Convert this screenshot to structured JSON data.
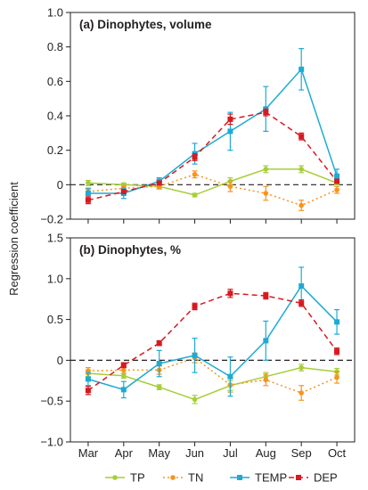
{
  "ylabel": "Regression coefficient",
  "categories": [
    "Mar",
    "Apr",
    "May",
    "Jun",
    "Jul",
    "Aug",
    "Sep",
    "Oct"
  ],
  "legend": [
    {
      "name": "TP",
      "color": "#a6ce39",
      "dash": "solid",
      "marker": "circle"
    },
    {
      "name": "TN",
      "color": "#f7941d",
      "dash": "dotted",
      "marker": "circle"
    },
    {
      "name": "TEMP",
      "color": "#1eaad4",
      "dash": "solid",
      "marker": "square"
    },
    {
      "name": "DEP",
      "color": "#d71920",
      "dash": "dashed",
      "marker": "square"
    }
  ],
  "chart_data": [
    {
      "type": "line",
      "title": "(a) Dinophytes, volume",
      "ylim": [
        -0.2,
        1.0
      ],
      "yticks": [
        -0.2,
        0,
        0.2,
        0.4,
        0.6,
        0.8,
        1.0
      ],
      "ytick_labels": [
        "−0.2",
        "0",
        "0.2",
        "0.4",
        "0.6",
        "0.8",
        "1.0"
      ],
      "categories": [
        "Mar",
        "Apr",
        "May",
        "Jun",
        "Jul",
        "Aug",
        "Sep",
        "Oct"
      ],
      "reference_line": 0,
      "series": [
        {
          "name": "TP",
          "values": [
            0.01,
            0.0,
            -0.01,
            -0.06,
            0.02,
            0.09,
            0.09,
            0.01
          ],
          "errors": [
            0.015,
            0.01,
            0.01,
            0.01,
            0.02,
            0.02,
            0.02,
            0.01
          ]
        },
        {
          "name": "TN",
          "values": [
            -0.04,
            -0.02,
            -0.01,
            0.06,
            -0.01,
            -0.05,
            -0.12,
            -0.03
          ],
          "errors": [
            0.015,
            0.015,
            0.015,
            0.02,
            0.03,
            0.04,
            0.03,
            0.02
          ]
        },
        {
          "name": "TEMP",
          "values": [
            -0.05,
            -0.05,
            0.02,
            0.18,
            0.31,
            0.44,
            0.67,
            0.05
          ],
          "errors": [
            0.03,
            0.03,
            0.02,
            0.06,
            0.11,
            0.13,
            0.12,
            0.04
          ]
        },
        {
          "name": "DEP",
          "values": [
            -0.09,
            -0.04,
            0.01,
            0.16,
            0.38,
            0.42,
            0.28,
            0.02
          ],
          "errors": [
            0.02,
            0.01,
            0.01,
            0.02,
            0.03,
            0.02,
            0.02,
            0.01
          ]
        }
      ]
    },
    {
      "type": "line",
      "title": "(b) Dinophytes, %",
      "ylim": [
        -1.0,
        1.5
      ],
      "yticks": [
        -1.0,
        -0.5,
        0,
        0.5,
        1.0,
        1.5
      ],
      "ytick_labels": [
        "−1.0",
        "−0.5",
        "0",
        "0.5",
        "1.0",
        "1.5"
      ],
      "categories": [
        "Mar",
        "Apr",
        "May",
        "Jun",
        "Jul",
        "Aug",
        "Sep",
        "Oct"
      ],
      "reference_line": 0,
      "series": [
        {
          "name": "TP",
          "values": [
            -0.16,
            -0.19,
            -0.33,
            -0.48,
            -0.31,
            -0.2,
            -0.09,
            -0.14
          ],
          "errors": [
            0.04,
            0.03,
            0.03,
            0.05,
            0.06,
            0.05,
            0.04,
            0.04
          ]
        },
        {
          "name": "TN",
          "values": [
            -0.13,
            -0.12,
            -0.12,
            0.03,
            -0.3,
            -0.24,
            -0.4,
            -0.21
          ],
          "errors": [
            0.04,
            0.04,
            0.05,
            0.06,
            0.09,
            0.07,
            0.09,
            0.07
          ]
        },
        {
          "name": "TEMP",
          "values": [
            -0.23,
            -0.36,
            -0.04,
            0.06,
            -0.2,
            0.24,
            0.91,
            0.47
          ],
          "errors": [
            0.08,
            0.1,
            0.16,
            0.21,
            0.24,
            0.24,
            0.23,
            0.15
          ]
        },
        {
          "name": "DEP",
          "values": [
            -0.37,
            -0.06,
            0.21,
            0.66,
            0.82,
            0.79,
            0.7,
            0.11
          ],
          "errors": [
            0.05,
            0.03,
            0.03,
            0.04,
            0.05,
            0.04,
            0.04,
            0.04
          ]
        }
      ]
    }
  ]
}
